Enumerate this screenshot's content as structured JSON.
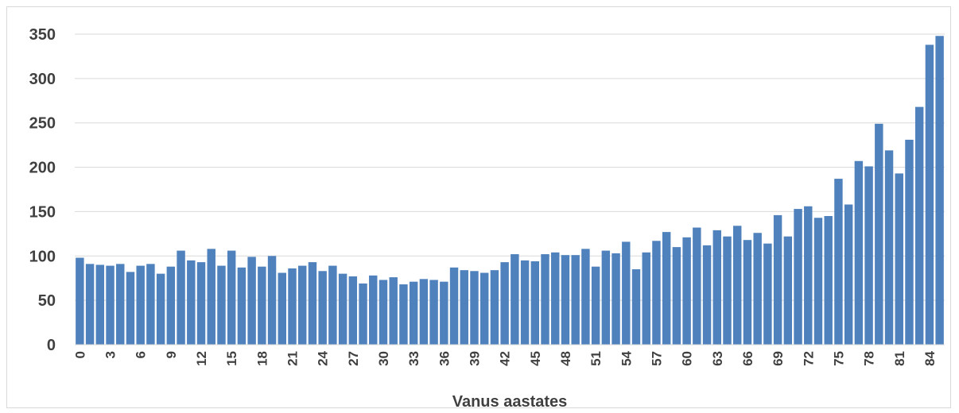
{
  "chart_data": {
    "type": "bar",
    "title": "",
    "xlabel": "Vanus aastates",
    "ylabel": "",
    "ylim": [
      0,
      350
    ],
    "yticks": [
      0,
      50,
      100,
      150,
      200,
      250,
      300,
      350
    ],
    "grid": true,
    "legend": "none",
    "bar_color": "#4f81bd",
    "categories": [
      "0",
      "1",
      "2",
      "3",
      "4",
      "5",
      "6",
      "7",
      "8",
      "9",
      "10",
      "11",
      "12",
      "13",
      "14",
      "15",
      "16",
      "17",
      "18",
      "19",
      "20",
      "21",
      "22",
      "23",
      "24",
      "25",
      "26",
      "27",
      "28",
      "29",
      "30",
      "31",
      "32",
      "33",
      "34",
      "35",
      "36",
      "37",
      "38",
      "39",
      "40",
      "41",
      "42",
      "43",
      "44",
      "45",
      "46",
      "47",
      "48",
      "49",
      "50",
      "51",
      "52",
      "53",
      "54",
      "55",
      "56",
      "57",
      "58",
      "59",
      "60",
      "61",
      "62",
      "63",
      "64",
      "65",
      "66",
      "67",
      "68",
      "69",
      "70",
      "71",
      "72",
      "73",
      "74",
      "75",
      "76",
      "77",
      "78",
      "79",
      "80",
      "81",
      "82",
      "83",
      "84",
      "85"
    ],
    "xtick_labels": [
      "0",
      "3",
      "6",
      "9",
      "12",
      "15",
      "18",
      "21",
      "24",
      "27",
      "30",
      "33",
      "36",
      "39",
      "42",
      "45",
      "48",
      "51",
      "54",
      "57",
      "60",
      "63",
      "66",
      "69",
      "72",
      "75",
      "78",
      "81",
      "84"
    ],
    "values": [
      98,
      91,
      90,
      89,
      91,
      82,
      89,
      91,
      80,
      88,
      106,
      95,
      93,
      108,
      89,
      106,
      87,
      99,
      88,
      100,
      81,
      86,
      89,
      93,
      83,
      89,
      80,
      77,
      69,
      78,
      73,
      76,
      68,
      71,
      74,
      73,
      71,
      87,
      84,
      83,
      81,
      84,
      93,
      102,
      95,
      94,
      102,
      104,
      101,
      101,
      108,
      88,
      106,
      103,
      116,
      85,
      104,
      117,
      127,
      110,
      121,
      132,
      112,
      129,
      122,
      134,
      118,
      126,
      114,
      146,
      122,
      153,
      156,
      143,
      145,
      187,
      158,
      207,
      201,
      249,
      219,
      193,
      231,
      268,
      338,
      348
    ]
  }
}
